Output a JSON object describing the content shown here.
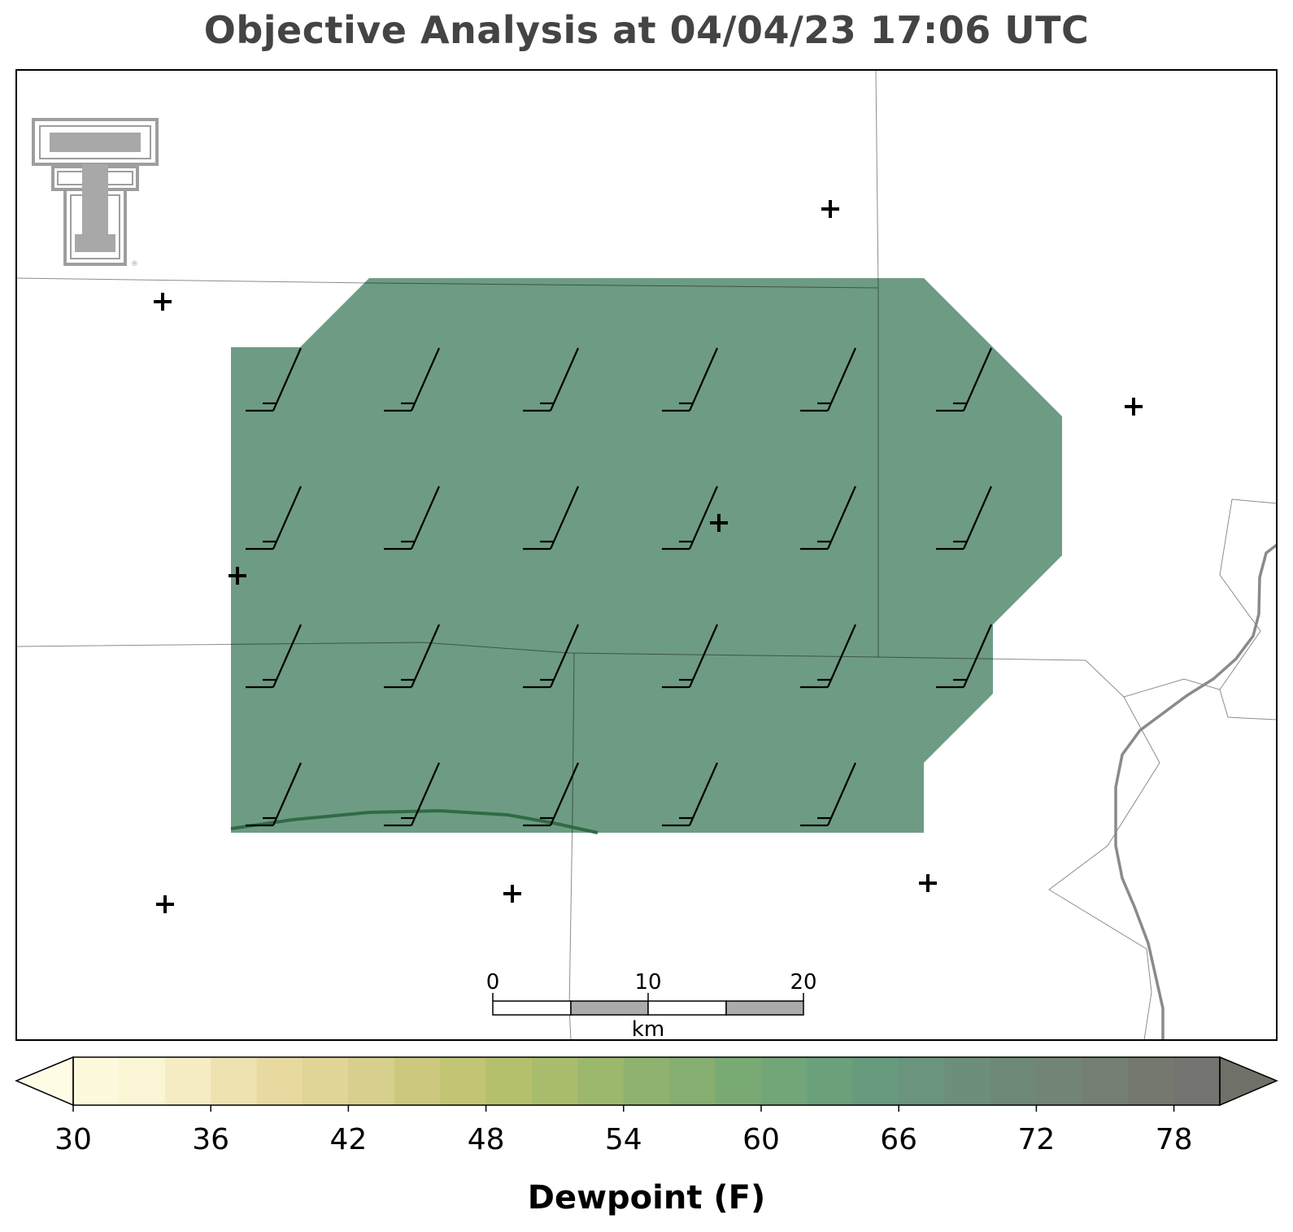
{
  "title": "Objective Analysis at 04/04/23 17:06 UTC",
  "colorbar": {
    "label": "Dewpoint (F)",
    "min": 30,
    "max": 80,
    "step": 2,
    "ticks": [
      "30",
      "36",
      "42",
      "48",
      "54",
      "60",
      "66",
      "72",
      "78"
    ],
    "colors": [
      "#fdf9dc",
      "#faf5d4",
      "#f5ecc4",
      "#eee2b0",
      "#e7d9a0",
      "#e0d496",
      "#d7cf8c",
      "#ccc97e",
      "#c2c573",
      "#b5c06d",
      "#a9bd6c",
      "#9bb86c",
      "#8fb36e",
      "#85ae70",
      "#7aaa74",
      "#72a578",
      "#6aa07b",
      "#689a7d",
      "#6a947e",
      "#6c8e7b",
      "#6e8878",
      "#728476",
      "#747e72",
      "#74786f",
      "#737470"
    ],
    "under_color": "#fffde6",
    "over_color": "#6f7169"
  },
  "analysis": {
    "fill_color": "#6e9b84",
    "contour_color": "#2f6b45"
  },
  "wind_barbs": [
    {
      "row": 1,
      "col": 1
    },
    {
      "row": 1,
      "col": 2
    },
    {
      "row": 1,
      "col": 3
    },
    {
      "row": 1,
      "col": 4
    },
    {
      "row": 1,
      "col": 5
    },
    {
      "row": 1,
      "col": 6
    },
    {
      "row": 2,
      "col": 1
    },
    {
      "row": 2,
      "col": 2
    },
    {
      "row": 2,
      "col": 3
    },
    {
      "row": 2,
      "col": 4
    },
    {
      "row": 2,
      "col": 5
    },
    {
      "row": 2,
      "col": 6
    },
    {
      "row": 3,
      "col": 1
    },
    {
      "row": 3,
      "col": 2
    },
    {
      "row": 3,
      "col": 3
    },
    {
      "row": 3,
      "col": 4
    },
    {
      "row": 3,
      "col": 5
    },
    {
      "row": 3,
      "col": 6
    },
    {
      "row": 4,
      "col": 1
    },
    {
      "row": 4,
      "col": 2
    },
    {
      "row": 4,
      "col": 3
    },
    {
      "row": 4,
      "col": 4
    },
    {
      "row": 4,
      "col": 5
    }
  ],
  "scale_bar": {
    "unit": "km",
    "labels": [
      "0",
      "10",
      "20"
    ]
  },
  "logo": "texas-tech-double-t-logo"
}
